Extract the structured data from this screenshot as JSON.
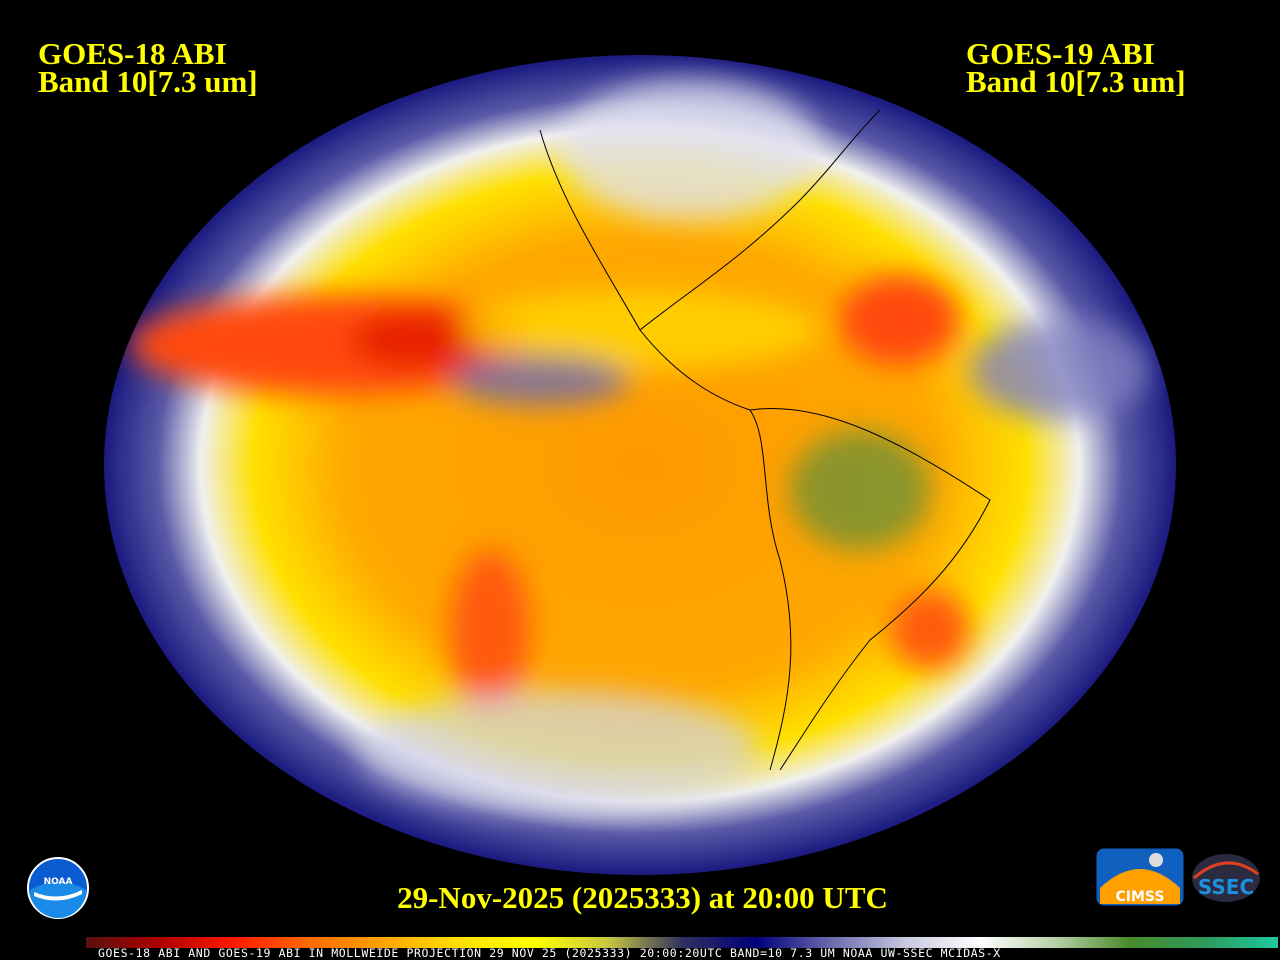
{
  "header": {
    "left_satellite": "GOES-18 ABI",
    "left_band": "Band 10[7.3 um]",
    "right_satellite": "GOES-19 ABI",
    "right_band": "Band 10[7.3 um]"
  },
  "timestamp": "29-Nov-2025 (2025333) at 20:00 UTC",
  "footer_caption": "GOES-18 ABI AND GOES-19 ABI IN MOLLWEIDE PROJECTION 29 NOV 25 (2025333) 20:00:20UTC BAND=10 7.3 UM NOAA UW-SSEC MCIDAS-X",
  "logos": {
    "noaa": "NOAA",
    "cimss": "CIMSS",
    "ssec": "SSEC"
  },
  "colorbar_colors": [
    "#5a1010",
    "#b00000",
    "#ff1a00",
    "#ff6a00",
    "#ffa500",
    "#ffe000",
    "#ffff00",
    "#c8c840",
    "#303060",
    "#00007a",
    "#6a6aae",
    "#c8c8e0",
    "#ffffff",
    "#b8d0a8",
    "#4a8a2a",
    "#2e9a5a",
    "#1ec8a0"
  ]
}
